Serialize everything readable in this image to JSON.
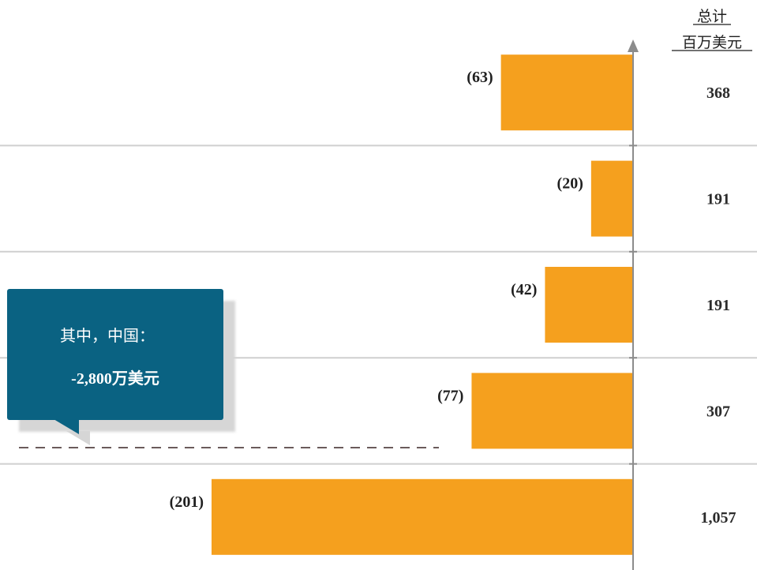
{
  "colors": {
    "bar": "#F5A01E",
    "axis": "#8c8c8c",
    "separator": "#cfcfcf",
    "callout": "#0A6282",
    "callout_shadow": "#d9d9d9",
    "dashed_line": "#6b5b5b"
  },
  "header": {
    "line1": "总计",
    "line2": "百万美元"
  },
  "callout": {
    "line1": "其中，中国：",
    "line2": "-2,800万美元"
  },
  "chart_data": {
    "type": "bar",
    "orientation": "horizontal",
    "values": [
      -63,
      -20,
      -42,
      -77,
      -201
    ],
    "value_labels": [
      "(63)",
      "(20)",
      "(42)",
      "(77)",
      "(201)"
    ],
    "totals": [
      "368",
      "191",
      "191",
      "307",
      "1,057"
    ],
    "xlim": [
      -201,
      0
    ],
    "grid": false
  }
}
